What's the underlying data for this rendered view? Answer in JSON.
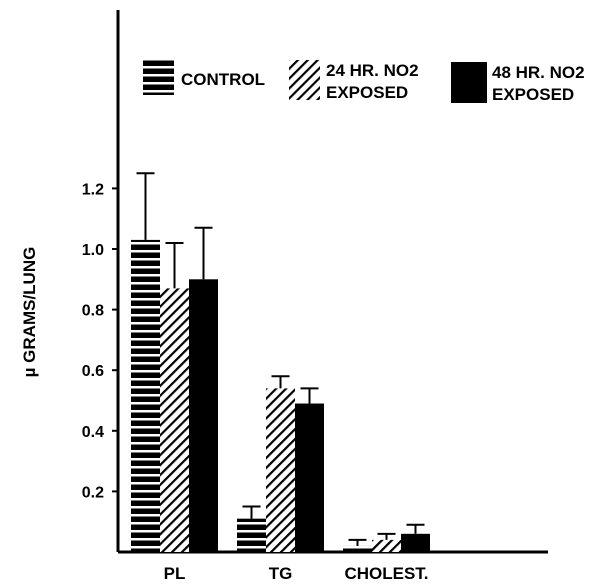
{
  "chart_data": {
    "type": "bar",
    "title": "",
    "xlabel": "",
    "ylabel": "µ GRAMS/LUNG",
    "ylim": [
      0,
      1.6
    ],
    "yticks": [
      "0.2",
      "0.4",
      "0.6",
      "0.8",
      "1.0",
      "1.2"
    ],
    "grid": false,
    "legend_position": "top",
    "categories": [
      "PL",
      "TG",
      "CHOLEST."
    ],
    "series": [
      {
        "name": "CONTROL",
        "pattern": "horizontal-stripes",
        "values": [
          1.03,
          0.11,
          0.02
        ],
        "errors": [
          0.22,
          0.04,
          0.02
        ]
      },
      {
        "name": "24 HR. NO2 EXPOSED",
        "name_lines": [
          "24 HR. NO2",
          "EXPOSED"
        ],
        "pattern": "diagonal-hatch",
        "values": [
          0.87,
          0.54,
          0.04
        ],
        "errors": [
          0.15,
          0.04,
          0.02
        ]
      },
      {
        "name": "48 HR. NO2 EXPOSED",
        "name_lines": [
          "48 HR. NO2",
          "EXPOSED"
        ],
        "pattern": "solid",
        "values": [
          0.9,
          0.49,
          0.06
        ],
        "errors": [
          0.17,
          0.05,
          0.03
        ]
      }
    ],
    "colors": {
      "ink": "#000000",
      "paper": "#ffffff"
    }
  }
}
